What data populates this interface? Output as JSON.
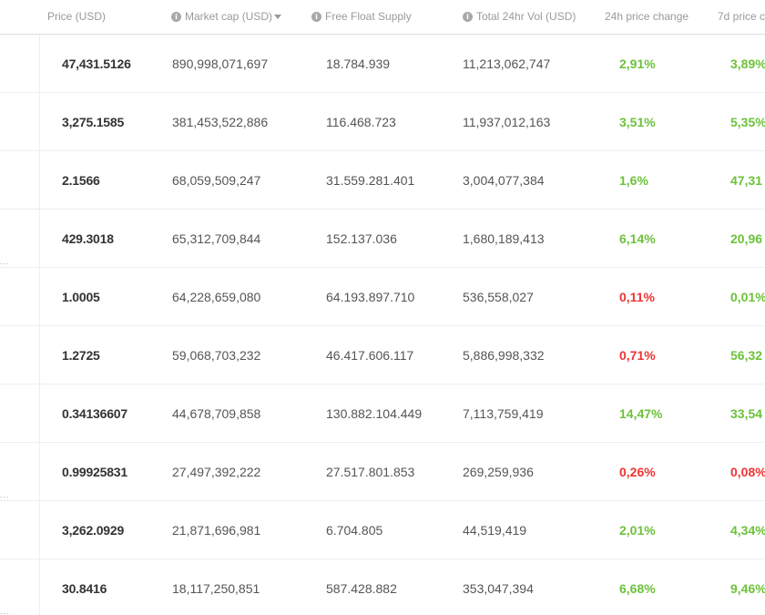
{
  "header": {
    "price": "Price (USD)",
    "market_cap": "Market cap (USD)",
    "free_float": "Free Float Supply",
    "total_vol": "Total 24hr Vol (USD)",
    "change_24h": "24h price change",
    "change_7d": "7d price c"
  },
  "icons": {
    "info": "info-circle-icon",
    "sort": "sort-descending-icon"
  },
  "colors": {
    "positive": "#6cc23a",
    "negative": "#ee3333"
  },
  "rows": [
    {
      "price": "47,431.5126",
      "market_cap": "890,998,071,697",
      "free_float": "18.784.939",
      "total_vol": "11,213,062,747",
      "change_24h": "2,91%",
      "change_24h_sign": "pos",
      "change_7d": "3,89%",
      "change_7d_sign": "pos"
    },
    {
      "price": "3,275.1585",
      "market_cap": "381,453,522,886",
      "free_float": "116.468.723",
      "total_vol": "11,937,012,163",
      "change_24h": "3,51%",
      "change_24h_sign": "pos",
      "change_7d": "5,35%",
      "change_7d_sign": "pos"
    },
    {
      "price": "2.1566",
      "market_cap": "68,059,509,247",
      "free_float": "31.559.281.401",
      "total_vol": "3,004,077,384",
      "change_24h": "1,6%",
      "change_24h_sign": "pos",
      "change_7d": "47,31",
      "change_7d_sign": "pos"
    },
    {
      "price": "429.3018",
      "market_cap": "65,312,709,844",
      "free_float": "152.137.036",
      "total_vol": "1,680,189,413",
      "change_24h": "6,14%",
      "change_24h_sign": "pos",
      "change_7d": "20,96",
      "change_7d_sign": "pos"
    },
    {
      "price": "1.0005",
      "market_cap": "64,228,659,080",
      "free_float": "64.193.897.710",
      "total_vol": "536,558,027",
      "change_24h": "0,11%",
      "change_24h_sign": "neg",
      "change_7d": "0,01%",
      "change_7d_sign": "pos"
    },
    {
      "price": "1.2725",
      "market_cap": "59,068,703,232",
      "free_float": "46.417.606.117",
      "total_vol": "5,886,998,332",
      "change_24h": "0,71%",
      "change_24h_sign": "neg",
      "change_7d": "56,32",
      "change_7d_sign": "pos"
    },
    {
      "price": "0.34136607",
      "market_cap": "44,678,709,858",
      "free_float": "130.882.104.449",
      "total_vol": "7,113,759,419",
      "change_24h": "14,47%",
      "change_24h_sign": "pos",
      "change_7d": "33,54",
      "change_7d_sign": "pos"
    },
    {
      "price": "0.99925831",
      "market_cap": "27,497,392,222",
      "free_float": "27.517.801.853",
      "total_vol": "269,259,936",
      "change_24h": "0,26%",
      "change_24h_sign": "neg",
      "change_7d": "0,08%",
      "change_7d_sign": "neg"
    },
    {
      "price": "3,262.0929",
      "market_cap": "21,871,696,981",
      "free_float": "6.704.805",
      "total_vol": "44,519,419",
      "change_24h": "2,01%",
      "change_24h_sign": "pos",
      "change_7d": "4,34%",
      "change_7d_sign": "pos"
    },
    {
      "price": "30.8416",
      "market_cap": "18,117,250,851",
      "free_float": "587.428.882",
      "total_vol": "353,047,394",
      "change_24h": "6,68%",
      "change_24h_sign": "pos",
      "change_7d": "9,46%",
      "change_7d_sign": "pos"
    }
  ]
}
